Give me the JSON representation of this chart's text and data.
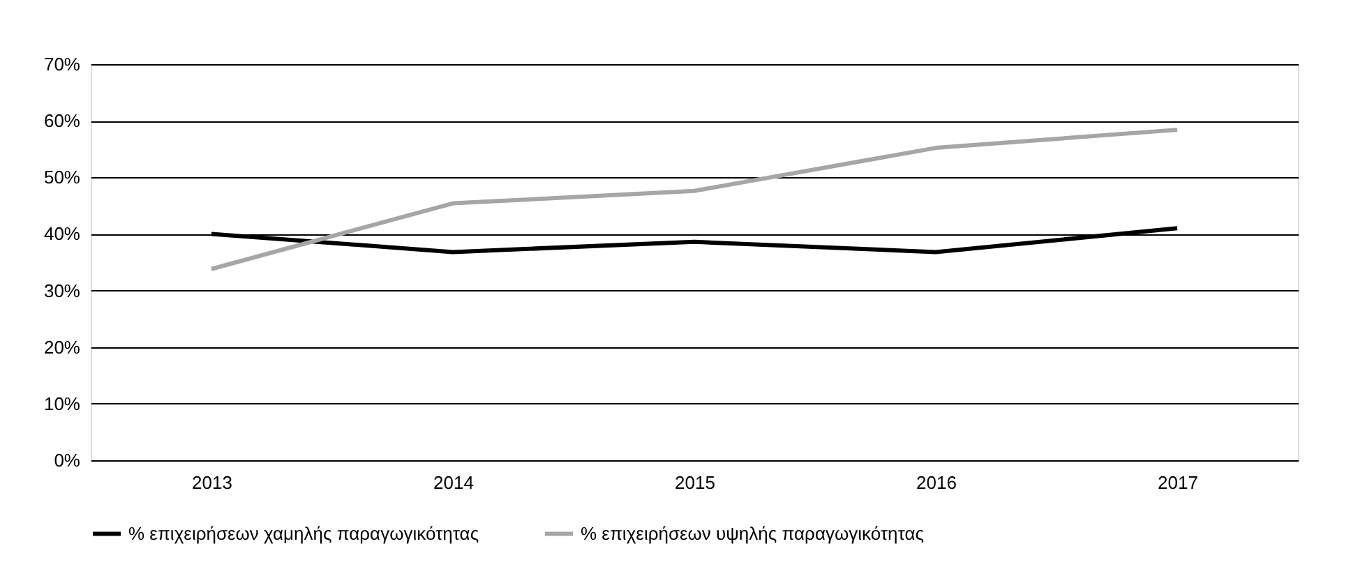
{
  "chart_data": {
    "type": "line",
    "categories": [
      "2013",
      "2014",
      "2015",
      "2016",
      "2017"
    ],
    "series": [
      {
        "name": "% επιχειρήσεων χαμηλής παραγωγικότητας",
        "color": "#000000",
        "values": [
          40.0,
          36.8,
          38.6,
          36.8,
          41.0
        ]
      },
      {
        "name": "% επιχειρήσεων υψηλής παραγωγικότητας",
        "color": "#a6a6a6",
        "values": [
          33.8,
          45.4,
          47.6,
          55.2,
          58.4
        ]
      }
    ],
    "ylim": [
      0,
      70
    ],
    "yticks": [
      {
        "value": 0,
        "label": "0%"
      },
      {
        "value": 10,
        "label": "10%"
      },
      {
        "value": 20,
        "label": "20%"
      },
      {
        "value": 30,
        "label": "30%"
      },
      {
        "value": 40,
        "label": "40%"
      },
      {
        "value": 50,
        "label": "50%"
      },
      {
        "value": 60,
        "label": "60%"
      },
      {
        "value": 70,
        "label": "70%"
      }
    ],
    "grid": "y",
    "legend": "bottom",
    "marker": "none",
    "line_style": "solid"
  }
}
